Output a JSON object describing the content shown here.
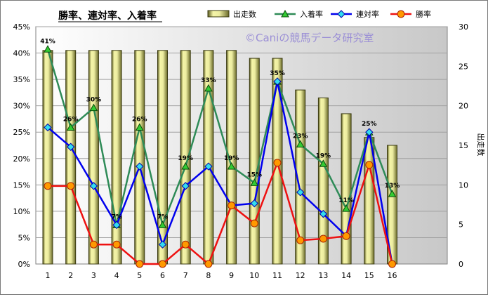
{
  "chart_data": {
    "type": "bar+line",
    "title": "勝率、連対率、入着率",
    "watermark": "©Caniの競馬データ研究室",
    "categories": [
      "1",
      "2",
      "3",
      "4",
      "5",
      "6",
      "7",
      "8",
      "9",
      "10",
      "11",
      "12",
      "13",
      "14",
      "15",
      "16"
    ],
    "left_axis": {
      "ticks": [
        "0%",
        "5%",
        "10%",
        "15%",
        "20%",
        "25%",
        "30%",
        "35%",
        "40%",
        "45%"
      ],
      "ylim": [
        0,
        45
      ]
    },
    "right_axis": {
      "label": "出走数",
      "ticks": [
        "0",
        "5",
        "10",
        "15",
        "20",
        "25",
        "30"
      ],
      "ylim": [
        0,
        30
      ]
    },
    "bar_series": {
      "name": "出走数",
      "color": "#ecec90",
      "values": [
        27,
        27,
        27,
        27,
        27,
        27,
        27,
        27,
        27,
        26,
        26,
        22,
        21,
        19,
        16,
        15
      ]
    },
    "line_series": [
      {
        "name": "入着率",
        "color": "#2e8b57",
        "marker": "triangle",
        "values": [
          40.7,
          25.9,
          29.6,
          7.4,
          25.9,
          7.4,
          18.5,
          33.3,
          18.5,
          15.4,
          34.6,
          22.7,
          19.0,
          10.5,
          25.0,
          13.3
        ],
        "labels": [
          "41%",
          "26%",
          "30%",
          "7%",
          "26%",
          "7%",
          "19%",
          "33%",
          "19%",
          "15%",
          "35%",
          "23%",
          "19%",
          "11%",
          "25%",
          "13%"
        ]
      },
      {
        "name": "連対率",
        "color": "#0000ee",
        "marker": "diamond",
        "values": [
          25.9,
          22.2,
          14.8,
          7.4,
          18.5,
          3.7,
          14.8,
          18.5,
          11.1,
          11.5,
          34.6,
          13.6,
          9.5,
          5.3,
          25.0,
          0
        ]
      },
      {
        "name": "勝率",
        "color": "#ee1111",
        "marker": "circle",
        "values": [
          14.8,
          14.8,
          3.7,
          3.7,
          0,
          0,
          3.7,
          0,
          11.1,
          7.7,
          19.2,
          4.5,
          4.8,
          5.3,
          18.8,
          0
        ]
      }
    ],
    "legend_position": "top-right",
    "grid": true
  }
}
